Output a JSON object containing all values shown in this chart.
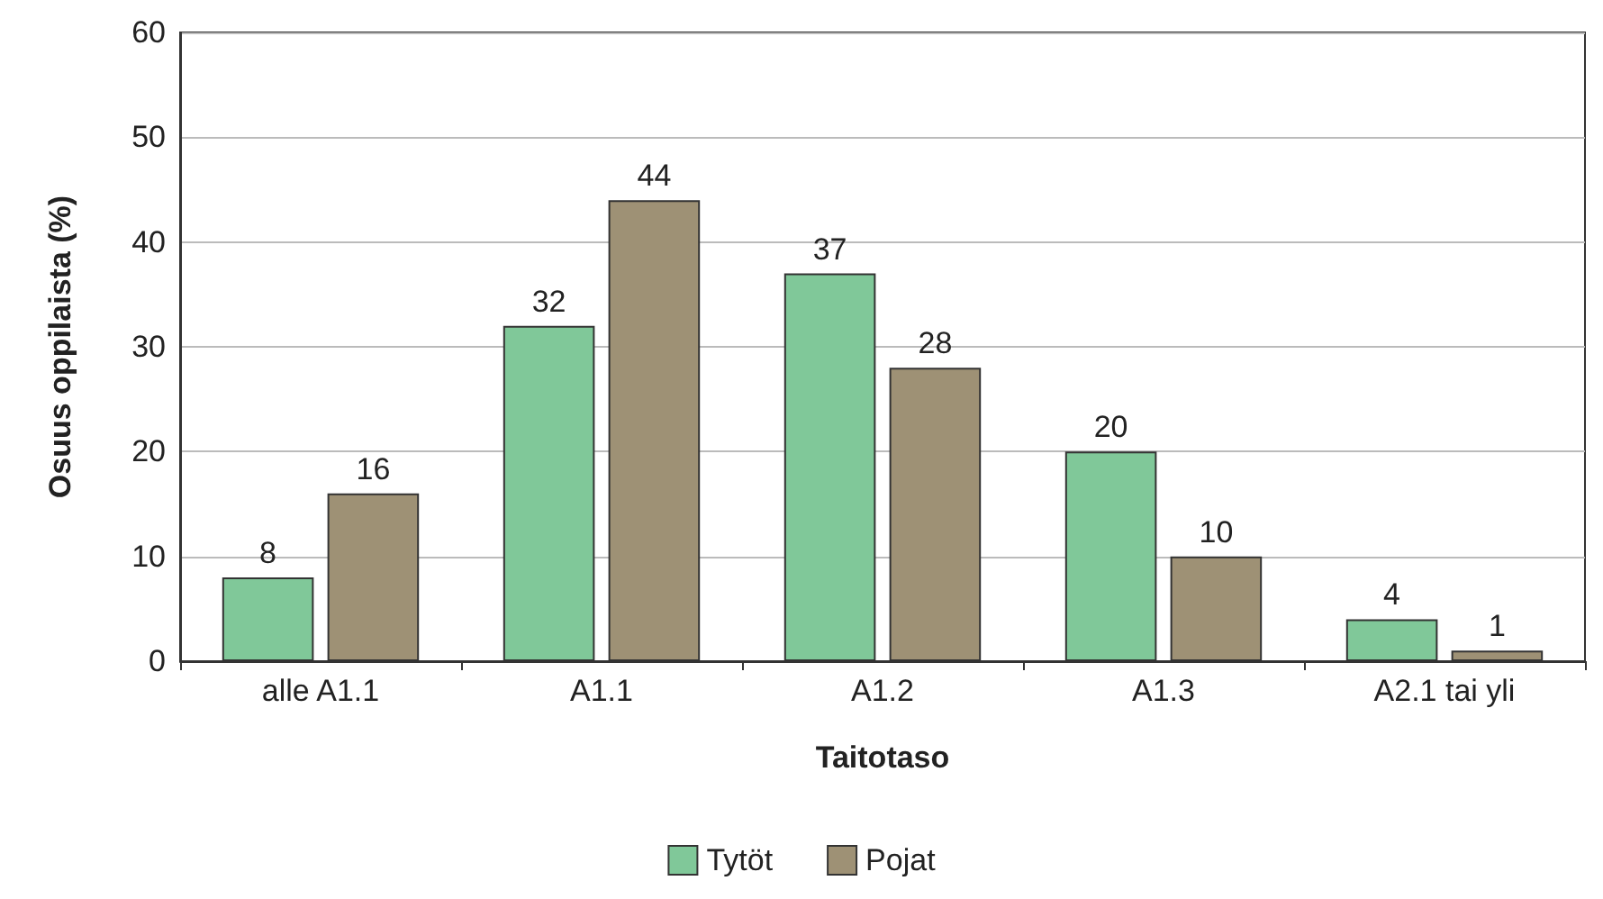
{
  "chart_data": {
    "type": "bar",
    "xlabel": "Taitotaso",
    "ylabel": "Osuus oppilaista (%)",
    "categories": [
      "alle A1.1",
      "A1.1",
      "A1.2",
      "A1.3",
      "A2.1 tai yli"
    ],
    "series": [
      {
        "name": "Tytöt",
        "color": "#80c899",
        "values": [
          8,
          32,
          37,
          20,
          4
        ]
      },
      {
        "name": "Pojat",
        "color": "#9e9175",
        "values": [
          16,
          44,
          28,
          10,
          1
        ]
      }
    ],
    "ylim": [
      0,
      60
    ],
    "yticks": [
      0,
      10,
      20,
      30,
      40,
      50,
      60
    ],
    "grid": "y",
    "legend": "bottom",
    "data_labels": true
  }
}
